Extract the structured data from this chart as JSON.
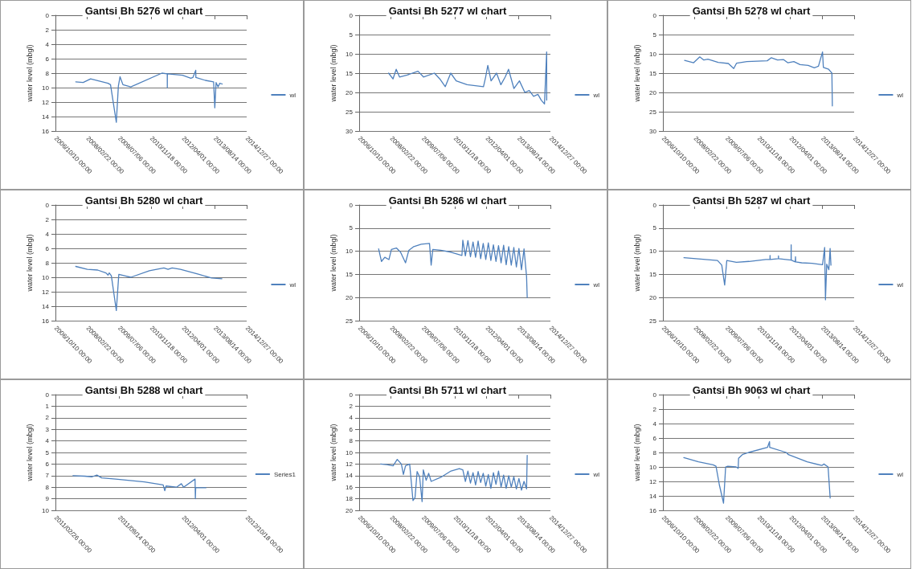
{
  "chart_data": [
    {
      "type": "line",
      "title": "Gantsi Bh 5276 wl chart",
      "ylabel": "water level (mbgl)",
      "legend": "right",
      "grid": "y",
      "marker": "none",
      "line_style": "solid",
      "xlim": [
        "2006-10-10",
        "2014-12-27"
      ],
      "xticks": [
        {
          "value": "2006-10-10",
          "label": "2006/10/10 00:00"
        },
        {
          "value": "2008-02-22",
          "label": "2008/02/22 00:00"
        },
        {
          "value": "2009-07-06",
          "label": "2009/07/06 00:00"
        },
        {
          "value": "2010-11-18",
          "label": "2010/11/18 00:00"
        },
        {
          "value": "2012-04-01",
          "label": "2012/04/01 00:00"
        },
        {
          "value": "2013-08-14",
          "label": "2013/08/14 00:00"
        },
        {
          "value": "2014-12-27",
          "label": "2014/12/27 00:00"
        }
      ],
      "ylim": [
        16,
        0
      ],
      "yticks": [
        0,
        2,
        4,
        6,
        8,
        10,
        12,
        14,
        16
      ],
      "series": [
        {
          "name": "wl",
          "color": "#4f81bd",
          "x": [
            "2007-08-24",
            "2007-12-19",
            "2008-04-14",
            "2009-01-12",
            "2009-02-20",
            "2009-05-22",
            "2009-06-23",
            "2009-07-19",
            "2009-09-03",
            "2010-01-04",
            "2011-05-07",
            "2011-07-30",
            "2011-07-31",
            "2011-08-01",
            "2012-03-26",
            "2012-08-03",
            "2012-09-04",
            "2012-10-19",
            "2012-10-21",
            "2013-03-18",
            "2013-07-26",
            "2013-08-14",
            "2013-09-03",
            "2013-10-05",
            "2013-10-31",
            "2013-12-09"
          ],
          "values": [
            9.2,
            9.3,
            8.8,
            9.4,
            9.6,
            14.8,
            9.8,
            8.5,
            9.6,
            9.9,
            8.0,
            8.1,
            10.0,
            8.1,
            8.3,
            8.7,
            8.6,
            7.6,
            8.6,
            9.0,
            9.2,
            12.8,
            9.3,
            9.9,
            9.4,
            9.5
          ]
        }
      ]
    },
    {
      "type": "line",
      "title": "Gantsi Bh 5277 wl chart",
      "ylabel": "water level (mbgl)",
      "legend": "right",
      "grid": "y",
      "marker": "none",
      "line_style": "solid",
      "xlim": [
        "2006-10-10",
        "2014-12-27"
      ],
      "xticks": [
        {
          "value": "2006-10-10",
          "label": "2006/10/10 00:00"
        },
        {
          "value": "2008-02-22",
          "label": "2008/02/22 00:00"
        },
        {
          "value": "2009-07-06",
          "label": "2009/07/06 00:00"
        },
        {
          "value": "2010-11-18",
          "label": "2010/11/18 00:00"
        },
        {
          "value": "2012-04-01",
          "label": "2012/04/01 00:00"
        },
        {
          "value": "2013-08-14",
          "label": "2013/08/14 00:00"
        },
        {
          "value": "2014-12-27",
          "label": "2014/12/27 00:00"
        }
      ],
      "ylim": [
        30,
        0
      ],
      "yticks": [
        0,
        5,
        10,
        15,
        20,
        25,
        30
      ],
      "series": [
        {
          "name": "wl",
          "color": "#4f81bd",
          "x": [
            "2008-01-15",
            "2008-03-23",
            "2008-05-13",
            "2008-07-04",
            "2008-10-31",
            "2009-04-20",
            "2009-07-15",
            "2010-01-02",
            "2010-03-28",
            "2010-06-22",
            "2010-09-15",
            "2010-12-10",
            "2011-05-31",
            "2012-02-11",
            "2012-03-16",
            "2012-04-19",
            "2012-06-09",
            "2012-09-03",
            "2012-11-10",
            "2013-01-17",
            "2013-03-10",
            "2013-06-03",
            "2013-08-28",
            "2013-11-21",
            "2014-01-29",
            "2014-04-07",
            "2014-06-14",
            "2014-08-05",
            "2014-09-25",
            "2014-10-29",
            "2014-10-30"
          ],
          "values": [
            15,
            16.5,
            14,
            16,
            15.5,
            14.5,
            16,
            15,
            16.5,
            18.5,
            15,
            17,
            18,
            18.5,
            16,
            13,
            17,
            15,
            18,
            16,
            14,
            19,
            17,
            20,
            19.5,
            21,
            20.5,
            22,
            23,
            9.5,
            22
          ]
        }
      ]
    },
    {
      "type": "line",
      "title": "Gantsi Bh 5278 wl chart",
      "ylabel": "water level (mbgl)",
      "legend": "right",
      "grid": "y",
      "marker": "none",
      "line_style": "solid",
      "xlim": [
        "2006-10-10",
        "2014-12-27"
      ],
      "xticks": [
        {
          "value": "2006-10-10",
          "label": "2006/10/10 00:00"
        },
        {
          "value": "2008-02-22",
          "label": "2008/02/22 00:00"
        },
        {
          "value": "2009-07-06",
          "label": "2009/07/06 00:00"
        },
        {
          "value": "2010-11-18",
          "label": "2010/11/18 00:00"
        },
        {
          "value": "2012-04-01",
          "label": "2012/04/01 00:00"
        },
        {
          "value": "2013-08-14",
          "label": "2013/08/14 00:00"
        },
        {
          "value": "2014-12-27",
          "label": "2014/12/27 00:00"
        }
      ],
      "ylim": [
        30,
        0
      ],
      "yticks": [
        0,
        5,
        10,
        15,
        20,
        25,
        30
      ],
      "series": [
        {
          "name": "wl",
          "color": "#4f81bd",
          "x": [
            "2007-09-15",
            "2008-02-04",
            "2008-05-10",
            "2008-07-13",
            "2008-09-15",
            "2009-02-23",
            "2009-08-02",
            "2009-10-25",
            "2009-12-09",
            "2010-05-18",
            "2011-04-04",
            "2011-06-07",
            "2011-09-12",
            "2011-12-17",
            "2012-02-19",
            "2012-05-25",
            "2012-08-30",
            "2013-01-05",
            "2013-04-11",
            "2013-06-15",
            "2013-08-18",
            "2013-08-31",
            "2013-11-22",
            "2013-12-24",
            "2014-01-12",
            "2014-01-19"
          ],
          "values": [
            11.7,
            12.3,
            10.8,
            11.6,
            11.4,
            12.2,
            12.5,
            13.8,
            12.4,
            12.0,
            11.8,
            11.0,
            11.6,
            11.5,
            12.3,
            12.0,
            12.8,
            13.0,
            13.6,
            13.2,
            9.5,
            13.5,
            14.0,
            14.6,
            15.0,
            23.5
          ]
        }
      ]
    },
    {
      "type": "line",
      "title": "Gantsi Bh 5280 wl chart",
      "ylabel": "water level (mbgl)",
      "legend": "right",
      "grid": "y",
      "marker": "none",
      "line_style": "solid",
      "xlim": [
        "2006-10-10",
        "2014-12-27"
      ],
      "xticks": [
        {
          "value": "2006-10-10",
          "label": "2006/10/10 00:00"
        },
        {
          "value": "2008-02-22",
          "label": "2008/02/22 00:00"
        },
        {
          "value": "2009-07-06",
          "label": "2009/07/06 00:00"
        },
        {
          "value": "2010-11-18",
          "label": "2010/11/18 00:00"
        },
        {
          "value": "2012-04-01",
          "label": "2012/04/01 00:00"
        },
        {
          "value": "2013-08-14",
          "label": "2013/08/14 00:00"
        },
        {
          "value": "2014-12-27",
          "label": "2014/12/27 00:00"
        }
      ],
      "ylim": [
        16,
        0
      ],
      "yticks": [
        0,
        2,
        4,
        6,
        8,
        10,
        12,
        14,
        16
      ],
      "series": [
        {
          "name": "wl",
          "color": "#4f81bd",
          "x": [
            "2007-08-24",
            "2008-02-22",
            "2008-08-02",
            "2008-12-10",
            "2009-01-12",
            "2009-01-31",
            "2009-03-05",
            "2009-05-22",
            "2009-06-30",
            "2009-09-28",
            "2010-01-04",
            "2010-10-23",
            "2011-06-07",
            "2011-08-11",
            "2011-10-15",
            "2012-02-22",
            "2012-12-10",
            "2013-06-23",
            "2013-12-03"
          ],
          "values": [
            8.5,
            8.9,
            9.0,
            9.4,
            9.7,
            9.4,
            9.8,
            14.6,
            9.6,
            9.8,
            10.0,
            9.1,
            8.7,
            8.9,
            8.7,
            8.9,
            9.6,
            10.1,
            10.2
          ]
        }
      ]
    },
    {
      "type": "line",
      "title": "Gantsi Bh 5286 wl chart",
      "ylabel": "water level (mbgl)",
      "legend": "right",
      "grid": "y",
      "marker": "none",
      "line_style": "solid",
      "xlim": [
        "2006-10-10",
        "2014-12-27"
      ],
      "xticks": [
        {
          "value": "2006-10-10",
          "label": "2006/10/10 00:00"
        },
        {
          "value": "2008-02-22",
          "label": "2008/02/22 00:00"
        },
        {
          "value": "2009-07-06",
          "label": "2009/07/06 00:00"
        },
        {
          "value": "2010-11-18",
          "label": "2010/11/18 00:00"
        },
        {
          "value": "2012-04-01",
          "label": "2012/04/01 00:00"
        },
        {
          "value": "2013-08-14",
          "label": "2013/08/14 00:00"
        },
        {
          "value": "2014-12-27",
          "label": "2014/12/27 00:00"
        }
      ],
      "ylim": [
        25,
        0
      ],
      "yticks": [
        0,
        5,
        10,
        15,
        20,
        25
      ],
      "series": [
        {
          "name": "wl",
          "color": "#4f81bd",
          "x": [
            "2007-08-11",
            "2007-09-25",
            "2007-11-16",
            "2008-01-20",
            "2008-02-28",
            "2008-05-16",
            "2008-07-20",
            "2008-10-06",
            "2008-11-27",
            "2009-02-13",
            "2009-06-10",
            "2009-10-17",
            "2009-11-12",
            "2009-12-08",
            "2010-04-11",
            "2010-09-20",
            "2011-03-10",
            "2011-03-24",
            "2011-05-03",
            "2011-06-12",
            "2011-07-22",
            "2011-08-31",
            "2011-10-10",
            "2011-11-19",
            "2011-12-29",
            "2012-02-07",
            "2012-03-18",
            "2012-04-27",
            "2012-06-06",
            "2012-07-16",
            "2012-08-25",
            "2012-10-04",
            "2012-11-13",
            "2012-12-23",
            "2013-02-01",
            "2013-03-13",
            "2013-04-22",
            "2013-06-01",
            "2013-07-11",
            "2013-08-20",
            "2013-09-29",
            "2013-11-08",
            "2013-12-18",
            "2013-12-28"
          ],
          "values": [
            9.5,
            12.2,
            11.3,
            11.8,
            9.6,
            9.3,
            10.2,
            12.5,
            9.8,
            9.0,
            8.5,
            8.3,
            13.0,
            9.6,
            9.8,
            10.2,
            10.9,
            7.6,
            11.0,
            7.7,
            11.2,
            8.0,
            11.3,
            7.8,
            11.6,
            8.3,
            11.8,
            8.2,
            12.0,
            8.6,
            12.2,
            8.8,
            12.5,
            8.7,
            12.9,
            9.0,
            13.0,
            9.2,
            13.4,
            9.4,
            14.0,
            9.5,
            15.5,
            20.0
          ]
        }
      ]
    },
    {
      "type": "line",
      "title": "Gantsi Bh 5287 wl chart",
      "ylabel": "water level (mbgl)",
      "legend": "right",
      "grid": "y",
      "marker": "none",
      "line_style": "solid",
      "xlim": [
        "2006-10-10",
        "2014-12-27"
      ],
      "xticks": [
        {
          "value": "2006-10-10",
          "label": "2006/10/10 00:00"
        },
        {
          "value": "2008-02-22",
          "label": "2008/02/22 00:00"
        },
        {
          "value": "2009-07-06",
          "label": "2009/07/06 00:00"
        },
        {
          "value": "2010-11-18",
          "label": "2010/11/18 00:00"
        },
        {
          "value": "2012-04-01",
          "label": "2012/04/01 00:00"
        },
        {
          "value": "2013-08-14",
          "label": "2013/08/14 00:00"
        },
        {
          "value": "2014-12-27",
          "label": "2014/12/27 00:00"
        }
      ],
      "ylim": [
        25,
        0
      ],
      "yticks": [
        0,
        5,
        10,
        15,
        20,
        25
      ],
      "series": [
        {
          "name": "wl",
          "color": "#4f81bd",
          "x": [
            "2007-09-05",
            "2009-02-13",
            "2009-04-20",
            "2009-06-05",
            "2009-07-08",
            "2009-12-06",
            "2010-06-22",
            "2011-03-12",
            "2011-05-17",
            "2011-05-18",
            "2011-05-19",
            "2011-09-26",
            "2011-09-27",
            "2011-09-28",
            "2012-04-12",
            "2012-04-13",
            "2012-04-14",
            "2012-06-17",
            "2012-06-20",
            "2012-06-23",
            "2012-09-24",
            "2013-03-06",
            "2013-08-18",
            "2013-09-20",
            "2013-10-03",
            "2013-10-23",
            "2013-11-25",
            "2013-12-15",
            "2013-12-28"
          ],
          "values": [
            11.4,
            12.0,
            13.0,
            17.3,
            12.0,
            12.4,
            12.2,
            11.8,
            11.8,
            10.9,
            11.8,
            11.6,
            11.0,
            11.6,
            11.9,
            8.6,
            11.9,
            12.3,
            11.2,
            12.3,
            12.5,
            12.6,
            12.9,
            9.2,
            20.5,
            12.8,
            14.0,
            9.4,
            13.0
          ]
        }
      ]
    },
    {
      "type": "line",
      "title": "Gantsi Bh 5288 wl chart",
      "ylabel": "water level (mbgl)",
      "legend": "right",
      "grid": "y",
      "marker": "none",
      "line_style": "solid",
      "xlim": [
        "2011-02-26",
        "2012-10-18"
      ],
      "xticks": [
        {
          "value": "2011-02-26",
          "label": "2011/02/26 00:00"
        },
        {
          "value": "2011-09-14",
          "label": "2011/09/14 00:00"
        },
        {
          "value": "2012-04-01",
          "label": "2012/04/01 00:00"
        },
        {
          "value": "2012-10-18",
          "label": "2012/10/18 00:00"
        }
      ],
      "ylim": [
        10,
        0
      ],
      "yticks": [
        0,
        1,
        2,
        3,
        4,
        5,
        6,
        7,
        8,
        9,
        10
      ],
      "series": [
        {
          "name": "Series1",
          "color": "#4f81bd",
          "x": [
            "2011-04-22",
            "2011-05-29",
            "2011-06-21",
            "2011-07-06",
            "2011-07-21",
            "2011-09-03",
            "2011-12-02",
            "2012-01-30",
            "2012-02-04",
            "2012-02-08",
            "2012-03-12",
            "2012-03-27",
            "2012-04-03",
            "2012-05-09",
            "2012-05-10",
            "2012-05-11",
            "2012-06-12"
          ],
          "values": [
            7.0,
            7.05,
            7.1,
            6.95,
            7.2,
            7.3,
            7.55,
            7.8,
            8.3,
            7.9,
            8.0,
            7.7,
            8.0,
            7.3,
            9.0,
            8.05,
            8.05
          ]
        }
      ]
    },
    {
      "type": "line",
      "title": "Gantsi Bh 5711 wl chart",
      "ylabel": "water level (mbgl)",
      "legend": "right",
      "grid": "y",
      "marker": "none",
      "line_style": "solid",
      "xlim": [
        "2006-10-10",
        "2014-12-27"
      ],
      "xticks": [
        {
          "value": "2006-10-10",
          "label": "2006/10/10 00:00"
        },
        {
          "value": "2008-02-22",
          "label": "2008/02/22 00:00"
        },
        {
          "value": "2009-07-06",
          "label": "2009/07/06 00:00"
        },
        {
          "value": "2010-11-18",
          "label": "2010/11/18 00:00"
        },
        {
          "value": "2012-04-01",
          "label": "2012/04/01 00:00"
        },
        {
          "value": "2013-08-14",
          "label": "2013/08/14 00:00"
        },
        {
          "value": "2014-12-27",
          "label": "2014/12/27 00:00"
        }
      ],
      "ylim": [
        20,
        0
      ],
      "yticks": [
        0,
        2,
        4,
        6,
        8,
        10,
        12,
        14,
        16,
        18,
        20
      ],
      "series": [
        {
          "name": "wl",
          "color": "#4f81bd",
          "x": [
            "2007-09-12",
            "2007-12-19",
            "2008-03-25",
            "2008-05-29",
            "2008-08-02",
            "2008-09-03",
            "2008-10-06",
            "2008-12-10",
            "2009-01-31",
            "2009-03-04",
            "2009-04-06",
            "2009-05-15",
            "2009-06-23",
            "2009-07-12",
            "2009-08-26",
            "2009-10-04",
            "2009-11-12",
            "2010-04-11",
            "2010-09-20",
            "2011-01-28",
            "2011-03-24",
            "2011-05-03",
            "2011-06-12",
            "2011-07-22",
            "2011-08-31",
            "2011-10-10",
            "2011-11-19",
            "2011-12-29",
            "2012-02-07",
            "2012-03-18",
            "2012-04-27",
            "2012-06-06",
            "2012-07-16",
            "2012-08-25",
            "2012-10-04",
            "2012-11-13",
            "2012-12-23",
            "2013-02-01",
            "2013-03-13",
            "2013-04-22",
            "2013-06-01",
            "2013-07-11",
            "2013-08-20",
            "2013-09-29",
            "2013-11-08",
            "2013-12-18",
            "2013-12-28"
          ],
          "values": [
            12.0,
            12.1,
            12.3,
            11.2,
            12.0,
            13.8,
            12.3,
            12.0,
            18.3,
            17.8,
            13.3,
            14.2,
            18.5,
            13.0,
            14.8,
            13.6,
            15.0,
            14.3,
            13.2,
            12.8,
            13.0,
            15.0,
            13.2,
            15.3,
            13.5,
            15.6,
            13.3,
            15.2,
            13.6,
            15.8,
            13.8,
            16.2,
            13.5,
            15.5,
            13.2,
            16.0,
            13.9,
            16.2,
            14.0,
            16.0,
            14.2,
            16.3,
            14.5,
            16.5,
            15.0,
            16.3,
            10.5
          ]
        }
      ]
    },
    {
      "type": "line",
      "title": "Gantsi Bh 9063 wl chart",
      "ylabel": "water level (mbgl)",
      "legend": "right",
      "grid": "y",
      "marker": "none",
      "line_style": "solid",
      "xlim": [
        "2006-10-10",
        "2014-12-27"
      ],
      "xticks": [
        {
          "value": "2006-10-10",
          "label": "2006/10/10 00:00"
        },
        {
          "value": "2008-02-22",
          "label": "2008/02/22 00:00"
        },
        {
          "value": "2009-07-06",
          "label": "2009/07/06 00:00"
        },
        {
          "value": "2010-11-18",
          "label": "2010/11/18 00:00"
        },
        {
          "value": "2012-04-01",
          "label": "2012/04/01 00:00"
        },
        {
          "value": "2013-08-14",
          "label": "2013/08/14 00:00"
        },
        {
          "value": "2014-12-27",
          "label": "2014/12/27 00:00"
        }
      ],
      "ylim": [
        16,
        0
      ],
      "yticks": [
        0,
        2,
        4,
        6,
        8,
        10,
        12,
        14,
        16
      ],
      "series": [
        {
          "name": "wl",
          "color": "#4f81bd",
          "x": [
            "2007-09-03",
            "2008-04-20",
            "2008-12-05",
            "2009-01-20",
            "2009-03-14",
            "2009-05-18",
            "2009-06-20",
            "2009-07-23",
            "2009-12-01",
            "2010-01-03",
            "2010-01-09",
            "2010-03-09",
            "2010-06-16",
            "2011-04-07",
            "2011-05-10",
            "2011-05-12",
            "2012-01-27",
            "2012-03-01",
            "2012-12-20",
            "2013-08-07",
            "2013-09-09",
            "2013-11-13",
            "2013-12-16"
          ],
          "values": [
            8.7,
            9.3,
            9.7,
            9.9,
            12.5,
            15.0,
            10.0,
            9.9,
            10.0,
            10.2,
            8.8,
            8.3,
            8.0,
            7.3,
            6.5,
            7.3,
            8.0,
            8.3,
            9.3,
            9.8,
            9.6,
            10.0,
            14.3
          ]
        }
      ]
    }
  ]
}
